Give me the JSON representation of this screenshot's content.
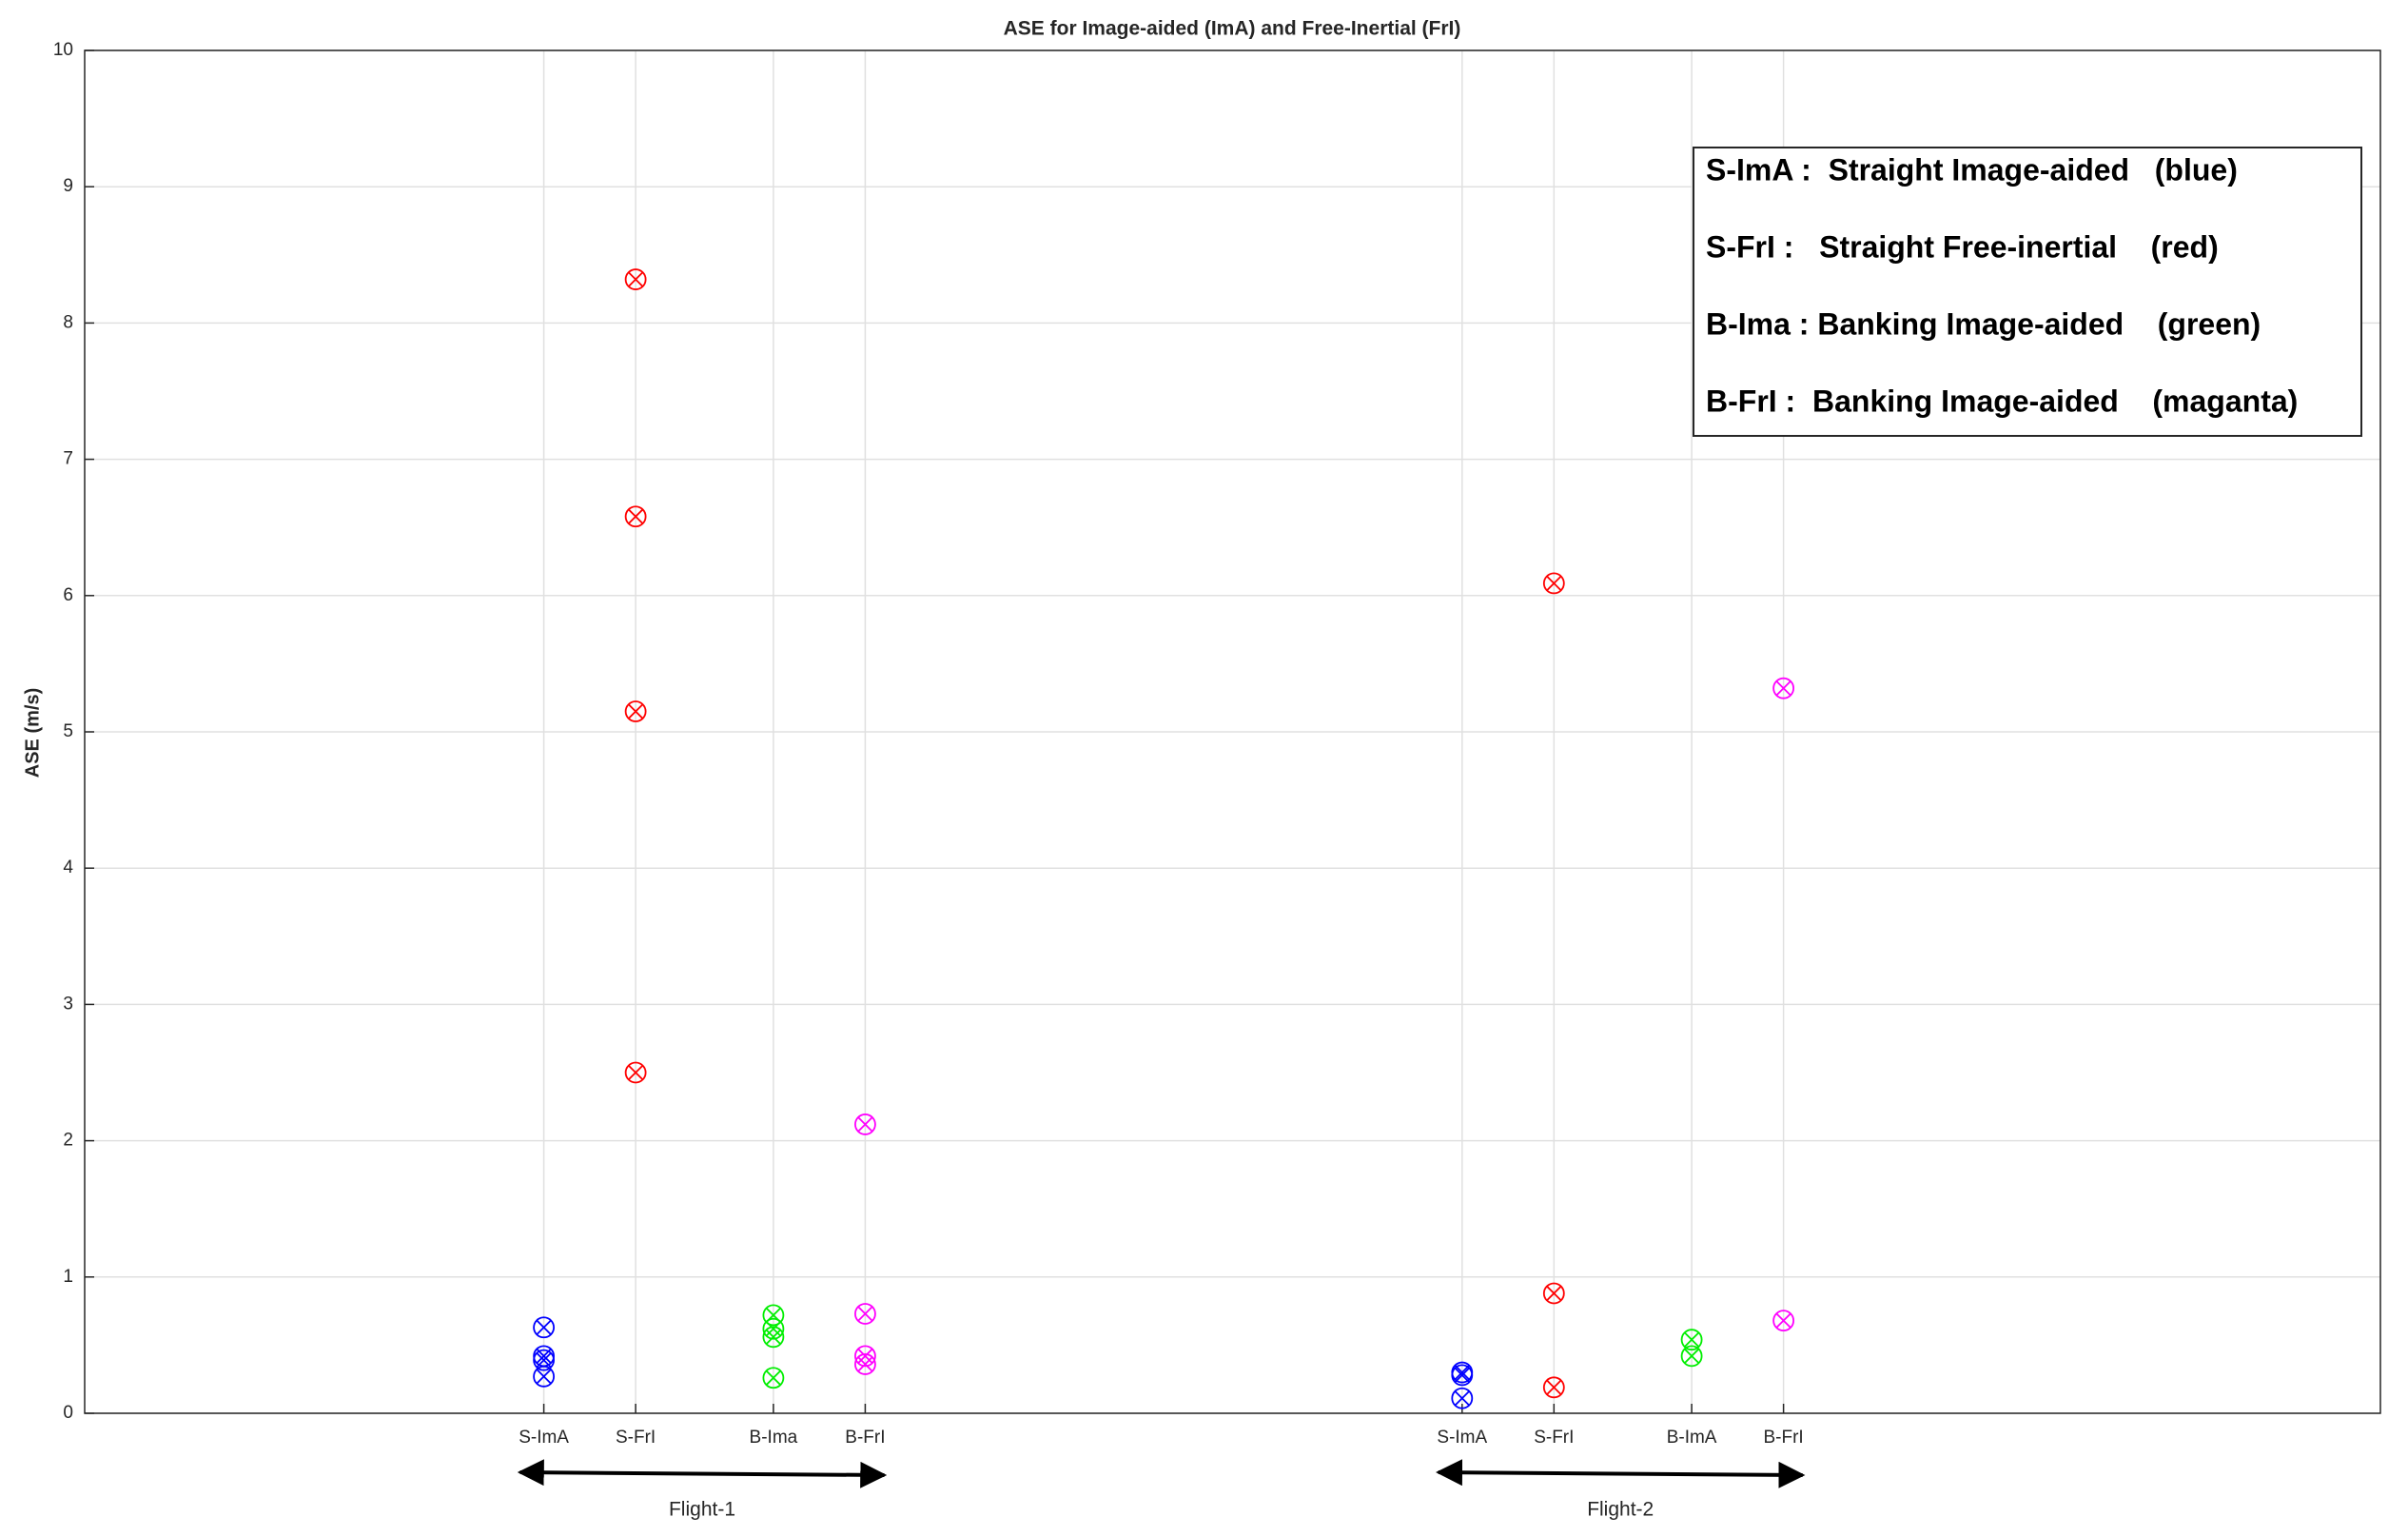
{
  "chart_data": {
    "type": "scatter",
    "title": "ASE for Image-aided (ImA) and Free-Inertial (FrI)",
    "y_label": "ASE (m/s)",
    "xlim": [
      0,
      25
    ],
    "ylim": [
      0,
      10
    ],
    "xticks": [
      {
        "value": 5,
        "label": "S-ImA"
      },
      {
        "value": 6,
        "label": "S-FrI"
      },
      {
        "value": 7.5,
        "label": "B-Ima"
      },
      {
        "value": 8.5,
        "label": "B-FrI"
      },
      {
        "value": 15,
        "label": "S-ImA"
      },
      {
        "value": 16,
        "label": "S-FrI"
      },
      {
        "value": 17.5,
        "label": "B-ImA"
      },
      {
        "value": 18.5,
        "label": "B-FrI"
      }
    ],
    "yticks": [
      0,
      1,
      2,
      3,
      4,
      5,
      6,
      7,
      8,
      9,
      10
    ],
    "grid": true,
    "legend": "upper right",
    "annotations": [
      "Flight-1",
      "Flight-2"
    ],
    "series": [
      {
        "name": "S-ImA :  Straight Image-aided   (blue)",
        "color": "#0000ff",
        "x": [
          5,
          5,
          5,
          5,
          15,
          15,
          15
        ],
        "values": [
          0.63,
          0.42,
          0.39,
          0.27,
          0.3,
          0.28,
          0.11
        ]
      },
      {
        "name": "S-FrI :   Straight Free-inertial    (red)",
        "color": "#ff0000",
        "x": [
          6,
          6,
          6,
          6,
          16,
          16,
          16
        ],
        "values": [
          8.32,
          6.58,
          5.15,
          2.5,
          6.09,
          0.88,
          0.19
        ]
      },
      {
        "name": "B-Ima : Banking Image-aided    (green)",
        "color": "#00ee00",
        "x": [
          7.5,
          7.5,
          7.5,
          7.5,
          17.5,
          17.5
        ],
        "values": [
          0.72,
          0.62,
          0.56,
          0.26,
          0.54,
          0.42
        ]
      },
      {
        "name": "B-FrI :  Banking Image-aided    (maganta)",
        "color": "#ff00ff",
        "x": [
          8.5,
          8.5,
          8.5,
          8.5,
          18.5,
          18.5
        ],
        "values": [
          2.12,
          0.73,
          0.42,
          0.36,
          5.32,
          0.68
        ]
      }
    ]
  }
}
